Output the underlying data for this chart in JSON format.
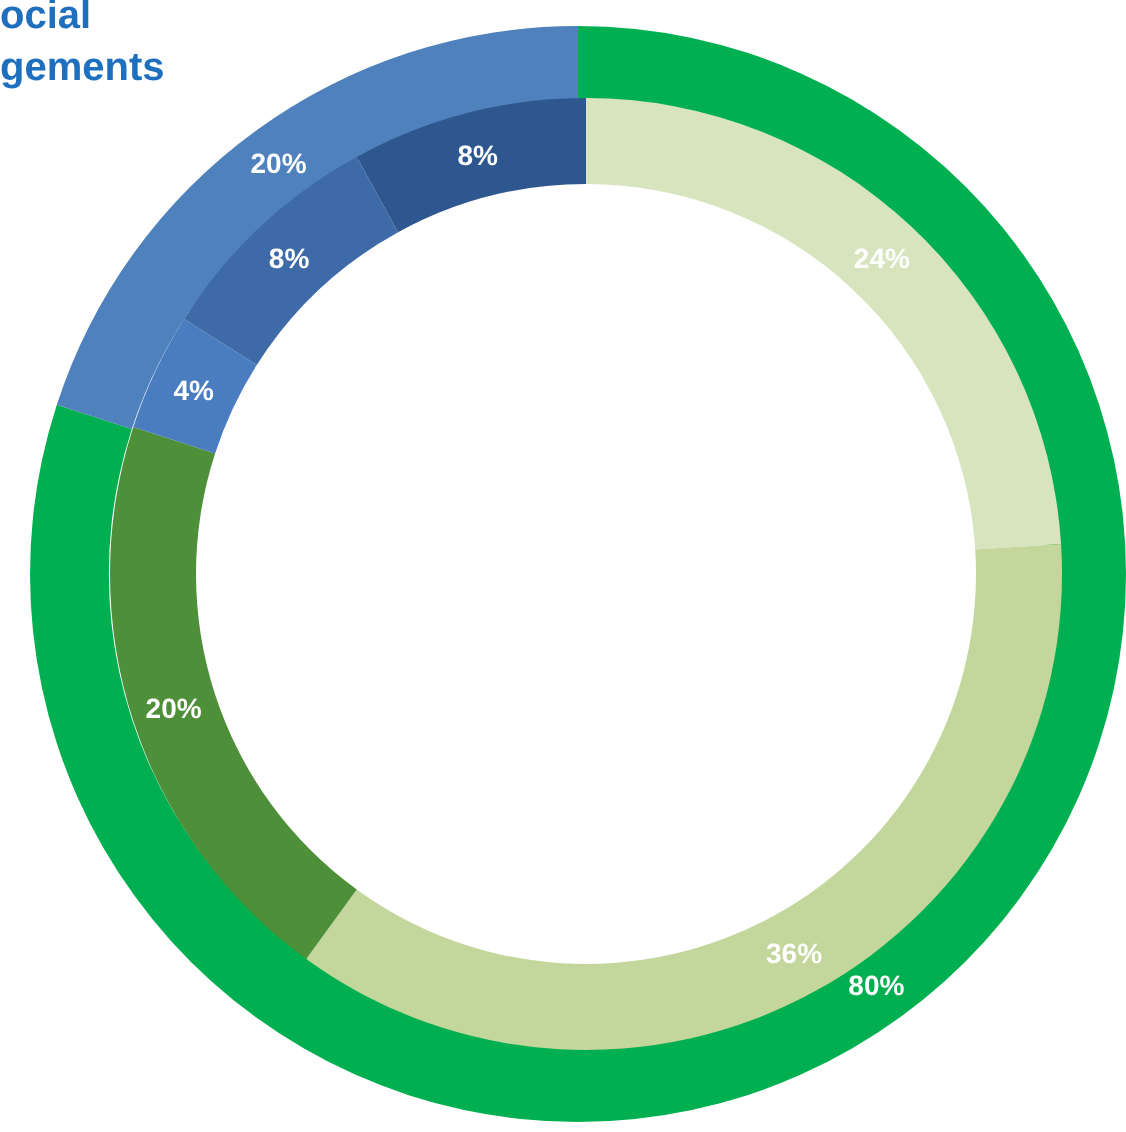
{
  "chart_data": {
    "type": "donut",
    "title": "ocial\ngements",
    "series": [
      {
        "values": [
          80,
          20
        ],
        "value_labels": [
          "80%",
          "20%"
        ],
        "colors": [
          "#00b050",
          "#4f81bd"
        ]
      },
      {
        "values": [
          24,
          36,
          20,
          4,
          8,
          8
        ],
        "value_labels": [
          "24%",
          "36%",
          "20%",
          "4%",
          "8%",
          "8%"
        ],
        "colors": [
          "#d7e4bd",
          "#c3d69b",
          "#4e8f3a",
          "#4a7cc0",
          "#3e6ba8",
          "#2f578f"
        ]
      }
    ]
  }
}
